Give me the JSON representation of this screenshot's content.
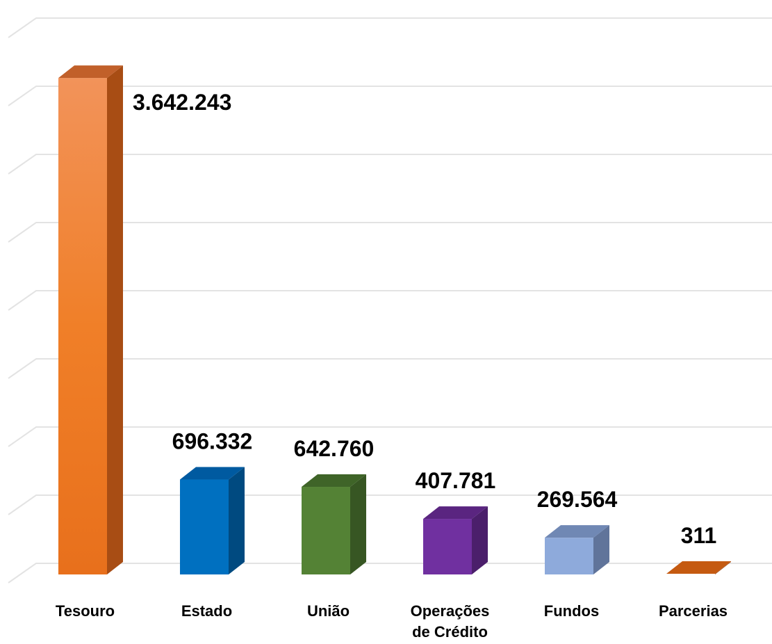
{
  "chart_data": {
    "type": "bar",
    "title": "",
    "xlabel": "",
    "ylabel": "",
    "ylim": [
      0,
      4000000
    ],
    "grid": true,
    "legend": "none",
    "categories": [
      "Tesouro",
      "Estado",
      "União",
      "Operações de Crédito",
      "Fundos",
      "Parcerias"
    ],
    "category_lines": [
      [
        "Tesouro"
      ],
      [
        "Estado"
      ],
      [
        "União"
      ],
      [
        "Operações",
        "de Crédito"
      ],
      [
        "Fundos"
      ],
      [
        "Parcerias"
      ]
    ],
    "values": [
      3642243,
      696332,
      642760,
      407781,
      269564,
      311
    ],
    "value_labels": [
      "3.642.243",
      "696.332",
      "642.760",
      "407.781",
      "269.564",
      "311"
    ],
    "colors": {
      "front": [
        "#ef7a22",
        "#0070c0",
        "#548235",
        "#7030a0",
        "#8eaadb",
        "#c55a11"
      ],
      "top": [
        "#c1602a",
        "#005aa0",
        "#3f6428",
        "#5a2580",
        "#7088b4",
        "#c55a11"
      ],
      "side": [
        "#a84d14",
        "#004a80",
        "#375623",
        "#4b1f6b",
        "#60749a",
        "#a04810"
      ]
    }
  }
}
